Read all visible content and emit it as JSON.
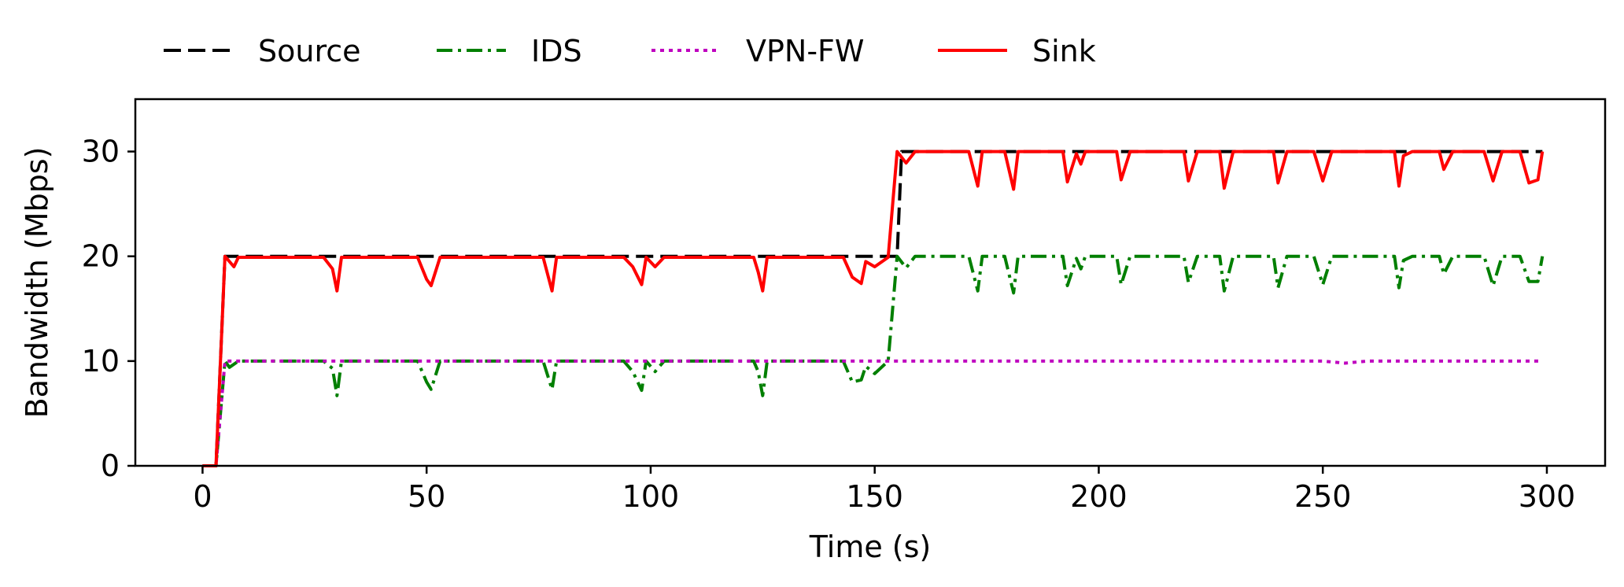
{
  "chart_data": {
    "type": "line",
    "title": "",
    "xlabel": "Time (s)",
    "ylabel": "Bandwidth (Mbps)",
    "xlim": [
      -15,
      313
    ],
    "ylim": [
      0,
      35
    ],
    "xticks": [
      0,
      50,
      100,
      150,
      200,
      250,
      300
    ],
    "yticks": [
      0,
      10,
      20,
      30
    ],
    "grid": false,
    "legend": {
      "placement": "top-left, outside plot",
      "entries": [
        "Source",
        "IDS",
        "VPN-FW",
        "Sink"
      ]
    },
    "series": [
      {
        "name": "Source",
        "color": "#000000",
        "style": "dashed",
        "points": [
          [
            0,
            0
          ],
          [
            3,
            0
          ],
          [
            5,
            20
          ],
          [
            155,
            20
          ],
          [
            156,
            30
          ],
          [
            299,
            30
          ]
        ]
      },
      {
        "name": "IDS",
        "color": "#007f00",
        "style": "dashdot",
        "points": [
          [
            0,
            0
          ],
          [
            3,
            0
          ],
          [
            5,
            10
          ],
          [
            6,
            9.4
          ],
          [
            8,
            10
          ],
          [
            27,
            10
          ],
          [
            29,
            9.3
          ],
          [
            30,
            6.7
          ],
          [
            31,
            10
          ],
          [
            48,
            10
          ],
          [
            50,
            8.0
          ],
          [
            51,
            7.3
          ],
          [
            53,
            10
          ],
          [
            76,
            10
          ],
          [
            78,
            7.3
          ],
          [
            79,
            10
          ],
          [
            94,
            10
          ],
          [
            96,
            9.0
          ],
          [
            98,
            7.2
          ],
          [
            99,
            10
          ],
          [
            101,
            9.0
          ],
          [
            103,
            10
          ],
          [
            123,
            10
          ],
          [
            124,
            9.0
          ],
          [
            125,
            6.7
          ],
          [
            126,
            10
          ],
          [
            143,
            10
          ],
          [
            145,
            8.0
          ],
          [
            147,
            8.2
          ],
          [
            148,
            9.5
          ],
          [
            150,
            8.8
          ],
          [
            153,
            10
          ],
          [
            155,
            20
          ],
          [
            157,
            18.9
          ],
          [
            159,
            20
          ],
          [
            171,
            20
          ],
          [
            173,
            16.7
          ],
          [
            174,
            20
          ],
          [
            179,
            20
          ],
          [
            181,
            16.5
          ],
          [
            182,
            20
          ],
          [
            192,
            20
          ],
          [
            193,
            17.2
          ],
          [
            195,
            19.8
          ],
          [
            196,
            18.8
          ],
          [
            197,
            20
          ],
          [
            204,
            20
          ],
          [
            205,
            17.3
          ],
          [
            207,
            20
          ],
          [
            219,
            20
          ],
          [
            220,
            17.5
          ],
          [
            222,
            20
          ],
          [
            227,
            20
          ],
          [
            228,
            16.7
          ],
          [
            230,
            20
          ],
          [
            239,
            20
          ],
          [
            240,
            17.0
          ],
          [
            242,
            20
          ],
          [
            248,
            20
          ],
          [
            250,
            17.3
          ],
          [
            252,
            20
          ],
          [
            266,
            20
          ],
          [
            267,
            17.0
          ],
          [
            268,
            19.6
          ],
          [
            270,
            20
          ],
          [
            276,
            20
          ],
          [
            277,
            18.3
          ],
          [
            279,
            20
          ],
          [
            286,
            20
          ],
          [
            288,
            17.2
          ],
          [
            290,
            20
          ],
          [
            294,
            20
          ],
          [
            296,
            17.6
          ],
          [
            298,
            17.6
          ],
          [
            299,
            20
          ]
        ]
      },
      {
        "name": "VPN-FW",
        "color": "#bf00bf",
        "style": "dotted",
        "points": [
          [
            0,
            0
          ],
          [
            3,
            0
          ],
          [
            5,
            10
          ],
          [
            250,
            10
          ],
          [
            255,
            9.8
          ],
          [
            260,
            10
          ],
          [
            299,
            10
          ]
        ]
      },
      {
        "name": "Sink",
        "color": "#ff0000",
        "style": "solid",
        "points": [
          [
            0,
            0
          ],
          [
            3,
            0
          ],
          [
            5,
            20
          ],
          [
            7,
            19.0
          ],
          [
            8,
            19.9
          ],
          [
            27,
            19.9
          ],
          [
            29,
            18.8
          ],
          [
            30,
            16.7
          ],
          [
            31,
            19.9
          ],
          [
            48,
            19.9
          ],
          [
            50,
            17.8
          ],
          [
            51,
            17.2
          ],
          [
            53,
            19.9
          ],
          [
            76,
            19.9
          ],
          [
            78,
            16.7
          ],
          [
            79,
            19.9
          ],
          [
            94,
            19.9
          ],
          [
            96,
            19.0
          ],
          [
            98,
            17.3
          ],
          [
            99,
            19.9
          ],
          [
            101,
            19.0
          ],
          [
            103,
            19.9
          ],
          [
            123,
            19.9
          ],
          [
            124,
            18.5
          ],
          [
            125,
            16.7
          ],
          [
            126,
            19.9
          ],
          [
            143,
            19.9
          ],
          [
            145,
            18.0
          ],
          [
            147,
            17.4
          ],
          [
            148,
            19.5
          ],
          [
            150,
            19.0
          ],
          [
            153,
            19.9
          ],
          [
            155,
            30
          ],
          [
            157,
            28.9
          ],
          [
            159,
            30
          ],
          [
            171,
            30
          ],
          [
            173,
            26.7
          ],
          [
            174,
            30
          ],
          [
            179,
            30
          ],
          [
            181,
            26.4
          ],
          [
            182,
            30
          ],
          [
            192,
            30
          ],
          [
            193,
            27.1
          ],
          [
            195,
            29.8
          ],
          [
            196,
            28.8
          ],
          [
            197,
            30
          ],
          [
            204,
            30
          ],
          [
            205,
            27.3
          ],
          [
            207,
            30
          ],
          [
            219,
            30
          ],
          [
            220,
            27.2
          ],
          [
            222,
            30
          ],
          [
            227,
            30
          ],
          [
            228,
            26.5
          ],
          [
            230,
            30
          ],
          [
            239,
            30
          ],
          [
            240,
            27.0
          ],
          [
            242,
            30
          ],
          [
            248,
            30
          ],
          [
            250,
            27.2
          ],
          [
            252,
            30
          ],
          [
            266,
            30
          ],
          [
            267,
            26.7
          ],
          [
            268,
            29.6
          ],
          [
            270,
            30
          ],
          [
            276,
            30
          ],
          [
            277,
            28.3
          ],
          [
            279,
            30
          ],
          [
            286,
            30
          ],
          [
            288,
            27.2
          ],
          [
            290,
            30
          ],
          [
            294,
            30
          ],
          [
            296,
            27.0
          ],
          [
            298,
            27.3
          ],
          [
            299,
            30
          ]
        ]
      }
    ]
  }
}
